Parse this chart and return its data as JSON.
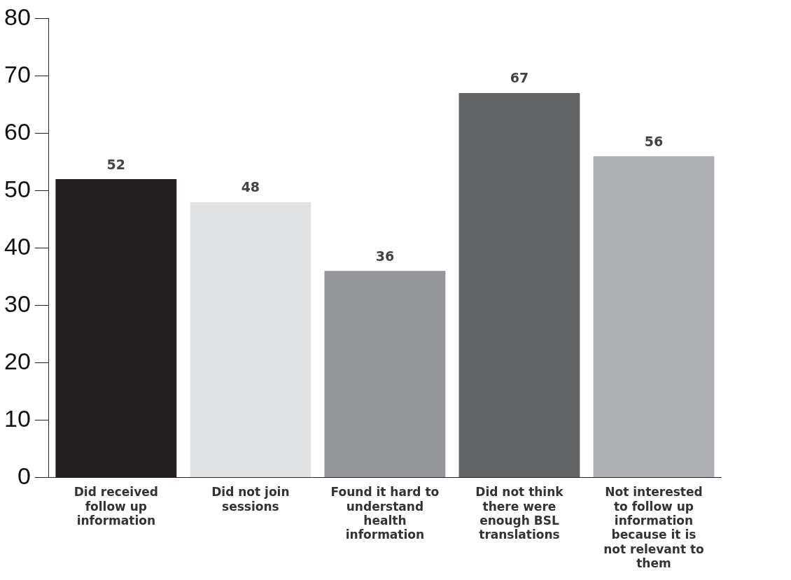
{
  "chart_data": {
    "type": "bar",
    "categories": [
      "Did received follow up information",
      "Did not join sessions",
      "Found it hard to understand health information",
      "Did not think there were enough BSL translations",
      "Not interested to follow up information because it is not relevant to them"
    ],
    "values": [
      52,
      48,
      36,
      67,
      56
    ],
    "colors": [
      "#231f20",
      "#e1e2e4",
      "#939598",
      "#636466",
      "#afb0b3"
    ],
    "ylim": [
      0,
      80
    ],
    "yticks": [
      0,
      10,
      20,
      30,
      40,
      50,
      60,
      70,
      80
    ],
    "grid": false,
    "legend": false,
    "data_labels": true
  }
}
